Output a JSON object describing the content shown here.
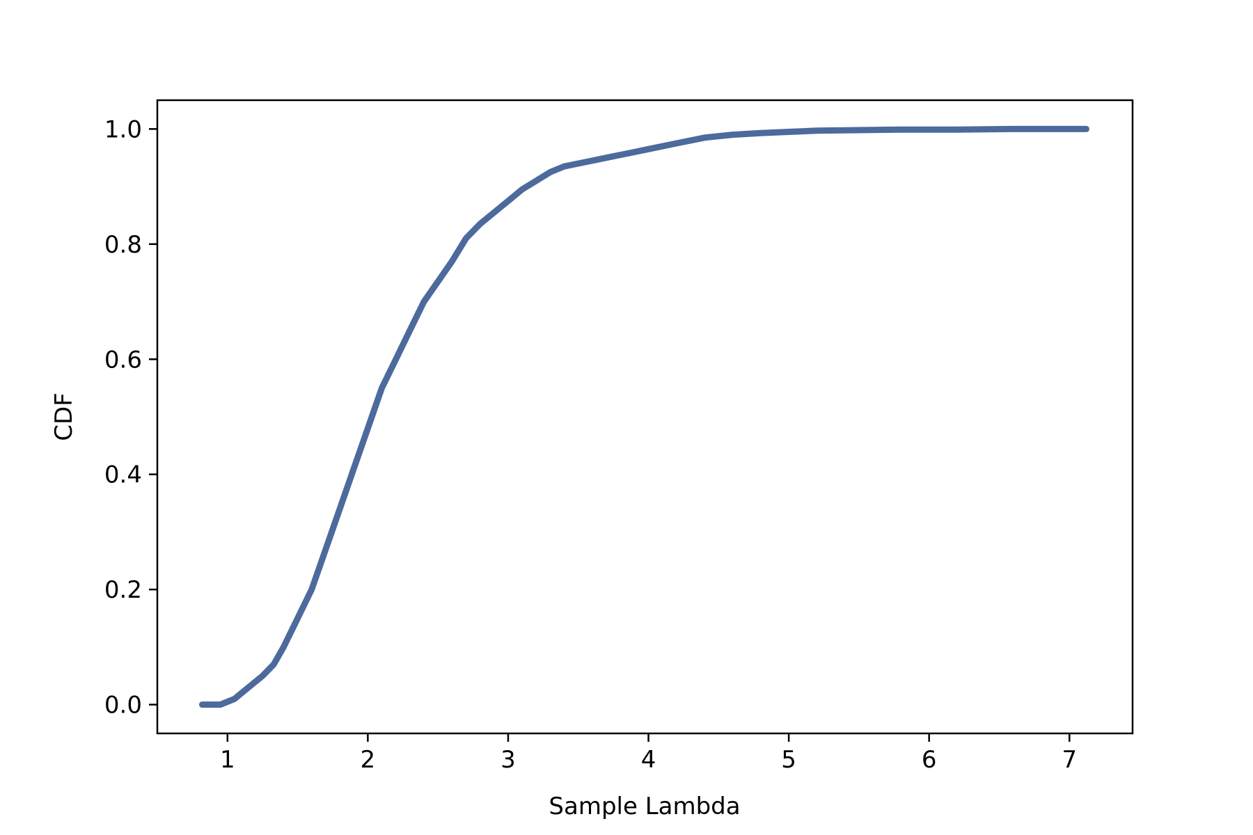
{
  "chart_data": {
    "type": "line",
    "xlabel": "Sample Lambda",
    "ylabel": "CDF",
    "xlim": [
      0.5,
      7.45
    ],
    "ylim": [
      -0.05,
      1.05
    ],
    "x_ticks": [
      1,
      2,
      3,
      4,
      5,
      6,
      7
    ],
    "y_ticks": [
      0.0,
      0.2,
      0.4,
      0.6,
      0.8,
      1.0
    ],
    "x_tick_labels": [
      "1",
      "2",
      "3",
      "4",
      "5",
      "6",
      "7"
    ],
    "y_tick_labels": [
      "0.0",
      "0.2",
      "0.4",
      "0.6",
      "0.8",
      "1.0"
    ],
    "grid": false,
    "line_color": "#4c6a9c",
    "series": [
      {
        "x": [
          0.82,
          0.95,
          1.05,
          1.15,
          1.25,
          1.33,
          1.4,
          1.5,
          1.6,
          1.7,
          1.8,
          1.9,
          2.0,
          2.1,
          2.2,
          2.3,
          2.4,
          2.5,
          2.6,
          2.7,
          2.8,
          2.9,
          3.0,
          3.1,
          3.2,
          3.3,
          3.4,
          3.5,
          3.6,
          3.7,
          3.8,
          3.9,
          4.0,
          4.2,
          4.4,
          4.6,
          4.8,
          5.0,
          5.2,
          5.5,
          5.8,
          6.2,
          6.6,
          7.0,
          7.12
        ],
        "y": [
          0.0,
          0.0,
          0.01,
          0.03,
          0.05,
          0.07,
          0.1,
          0.15,
          0.2,
          0.27,
          0.34,
          0.41,
          0.48,
          0.55,
          0.6,
          0.65,
          0.7,
          0.735,
          0.77,
          0.81,
          0.835,
          0.855,
          0.875,
          0.895,
          0.91,
          0.925,
          0.935,
          0.94,
          0.945,
          0.95,
          0.955,
          0.96,
          0.965,
          0.975,
          0.985,
          0.99,
          0.993,
          0.995,
          0.997,
          0.998,
          0.999,
          0.999,
          1.0,
          1.0,
          1.0
        ]
      }
    ]
  }
}
